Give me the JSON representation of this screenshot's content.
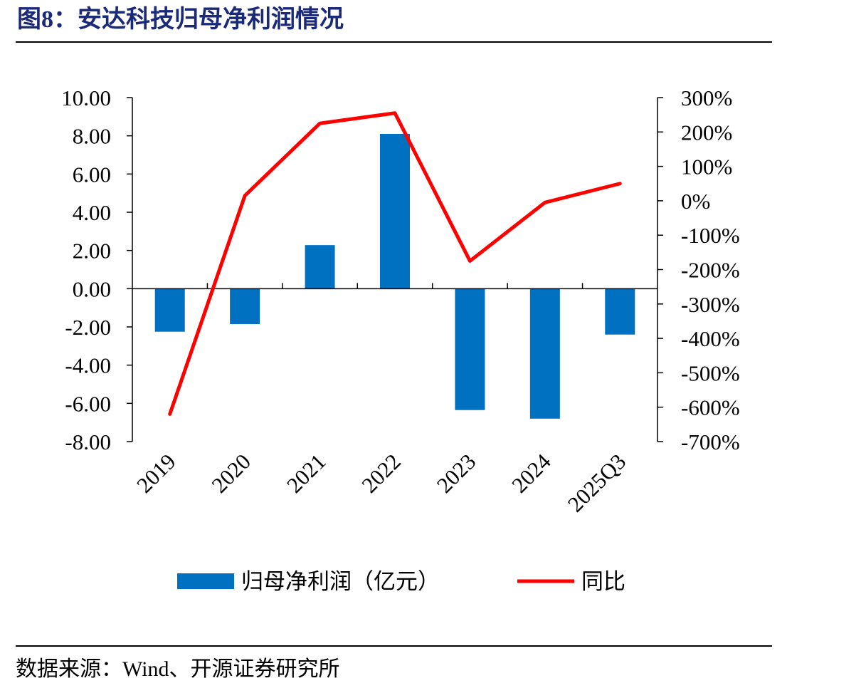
{
  "figure": {
    "title": "图8：安达科技归母净利润情况",
    "source": "数据来源：Wind、开源证券研究所"
  },
  "chart_data": {
    "type": "bar",
    "categories": [
      "2019",
      "2020",
      "2021",
      "2022",
      "2023",
      "2024",
      "2025Q3"
    ],
    "series": [
      {
        "name": "归母净利润（亿元）",
        "type": "bar",
        "axis": "left",
        "color": "#0070c0",
        "values": [
          -2.25,
          -1.85,
          2.28,
          8.1,
          -6.35,
          -6.8,
          -2.4
        ]
      },
      {
        "name": "同比",
        "type": "line",
        "axis": "right",
        "color": "#ff0000",
        "values": [
          -620,
          15,
          225,
          255,
          -175,
          -5,
          50
        ]
      }
    ],
    "left_axis": {
      "min": -8,
      "max": 10,
      "step": 2,
      "tick_labels": [
        "10.00",
        "8.00",
        "6.00",
        "4.00",
        "2.00",
        "0.00",
        "-2.00",
        "-4.00",
        "-6.00",
        "-8.00"
      ]
    },
    "right_axis": {
      "min": -700,
      "max": 300,
      "step": 100,
      "tick_labels": [
        "300%",
        "200%",
        "100%",
        "0%",
        "-100%",
        "-200%",
        "-300%",
        "-400%",
        "-500%",
        "-600%",
        "-700%"
      ]
    },
    "grid": false,
    "legend_position": "bottom"
  }
}
